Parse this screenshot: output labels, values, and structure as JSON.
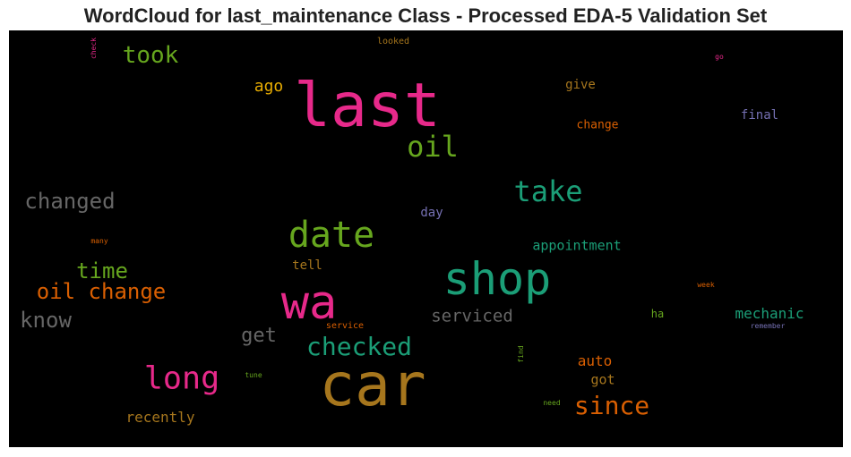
{
  "chart_data": {
    "type": "wordcloud",
    "title": "WordCloud for last_maintenance Class - Processed EDA-5 Validation Set",
    "background": "#000000",
    "colormap": "Dark2",
    "words": [
      {
        "text": "last",
        "color": "#e7298a"
      },
      {
        "text": "car",
        "color": "#a6761d"
      },
      {
        "text": "shop",
        "color": "#1b9e77"
      },
      {
        "text": "wa",
        "color": "#e7298a"
      },
      {
        "text": "date",
        "color": "#66a61e"
      },
      {
        "text": "take",
        "color": "#1b9e77"
      },
      {
        "text": "oil",
        "color": "#66a61e"
      },
      {
        "text": "long",
        "color": "#e7298a"
      },
      {
        "text": "checked",
        "color": "#1b9e77"
      },
      {
        "text": "since",
        "color": "#d95f02"
      },
      {
        "text": "oil change",
        "color": "#d95f02"
      },
      {
        "text": "changed",
        "color": "#666666"
      },
      {
        "text": "took",
        "color": "#66a61e"
      },
      {
        "text": "time",
        "color": "#66a61e"
      },
      {
        "text": "know",
        "color": "#666666"
      },
      {
        "text": "serviced",
        "color": "#666666"
      },
      {
        "text": "get",
        "color": "#666666"
      },
      {
        "text": "recently",
        "color": "#a6761d"
      },
      {
        "text": "ago",
        "color": "#e6ab02"
      },
      {
        "text": "mechanic",
        "color": "#1b9e77"
      },
      {
        "text": "appointment",
        "color": "#1b9e77"
      },
      {
        "text": "auto",
        "color": "#d95f02"
      },
      {
        "text": "got",
        "color": "#a6761d"
      },
      {
        "text": "give",
        "color": "#a6761d"
      },
      {
        "text": "final",
        "color": "#7570b3"
      },
      {
        "text": "change",
        "color": "#d95f02"
      },
      {
        "text": "day",
        "color": "#7570b3"
      },
      {
        "text": "tell",
        "color": "#a6761d"
      },
      {
        "text": "ha",
        "color": "#66a61e"
      },
      {
        "text": "looked",
        "color": "#a6761d"
      },
      {
        "text": "service",
        "color": "#d95f02"
      },
      {
        "text": "remember",
        "color": "#7570b3"
      },
      {
        "text": "week",
        "color": "#d95f02"
      },
      {
        "text": "many",
        "color": "#d95f02"
      },
      {
        "text": "tune",
        "color": "#66a61e"
      },
      {
        "text": "need",
        "color": "#66a61e"
      },
      {
        "text": "find",
        "color": "#66a61e"
      },
      {
        "text": "check",
        "color": "#e7298a"
      },
      {
        "text": "go",
        "color": "#e7298a"
      }
    ]
  }
}
